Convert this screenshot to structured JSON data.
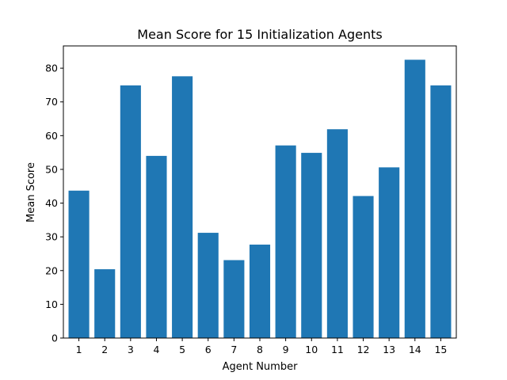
{
  "chart_data": {
    "type": "bar",
    "title": "Mean Score for 15 Initialization Agents",
    "xlabel": "Agent Number",
    "ylabel": "Mean Score",
    "categories": [
      "1",
      "2",
      "3",
      "4",
      "5",
      "6",
      "7",
      "8",
      "9",
      "10",
      "11",
      "12",
      "13",
      "14",
      "15"
    ],
    "values": [
      43.7,
      20.4,
      74.9,
      54.0,
      77.6,
      31.2,
      23.1,
      27.7,
      57.1,
      54.9,
      61.9,
      42.1,
      50.6,
      82.5,
      74.9
    ],
    "ylim": [
      0,
      86.6
    ],
    "yticks": [
      0,
      10,
      20,
      30,
      40,
      50,
      60,
      70,
      80
    ],
    "grid": false,
    "bar_color": "#1f77b4"
  }
}
